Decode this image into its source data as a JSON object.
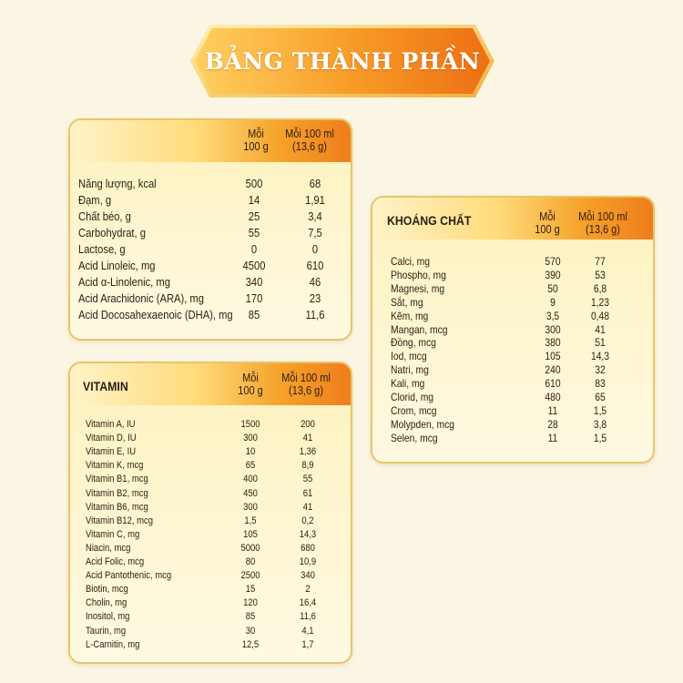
{
  "page_title": "BẢNG THÀNH PHẦN",
  "colors": {
    "orange": "#f08a1f",
    "gold": "#ffd56a",
    "cream": "#fdf6d2",
    "border": "#e8c46a"
  },
  "nutrition": {
    "col1": [
      "Mỗi",
      "100 g"
    ],
    "col2": [
      "Mỗi 100 ml",
      "(13,6 g)"
    ],
    "rows": [
      {
        "label": "Năng lượng, kcal",
        "v1": "500",
        "v2": "68"
      },
      {
        "label": "Đạm, g",
        "v1": "14",
        "v2": "1,91"
      },
      {
        "label": "Chất béo, g",
        "v1": "25",
        "v2": "3,4"
      },
      {
        "label": "Carbohydrat, g",
        "v1": "55",
        "v2": "7,5"
      },
      {
        "label": "Lactose, g",
        "v1": "0",
        "v2": "0"
      },
      {
        "label": "Acid Linoleic, mg",
        "v1": "4500",
        "v2": "610"
      },
      {
        "label": "Acid α-Linolenic, mg",
        "v1": "340",
        "v2": "46"
      },
      {
        "label": "Acid Arachidonic (ARA), mg",
        "v1": "170",
        "v2": "23"
      },
      {
        "label": "Acid Docosahexaenoic (DHA), mg",
        "v1": "85",
        "v2": "11,6"
      }
    ]
  },
  "vitamin": {
    "title": "VITAMIN",
    "col1": [
      "Mỗi",
      "100 g"
    ],
    "col2": [
      "Mỗi 100 ml",
      "(13,6 g)"
    ],
    "rows": [
      {
        "label": "Vitamin A, IU",
        "v1": "1500",
        "v2": "200"
      },
      {
        "label": "Vitamin D, IU",
        "v1": "300",
        "v2": "41"
      },
      {
        "label": "Vitamin E, IU",
        "v1": "10",
        "v2": "1,36"
      },
      {
        "label": "Vitamin K, mcg",
        "v1": "65",
        "v2": "8,9"
      },
      {
        "label": "Vitamin B1, mcg",
        "v1": "400",
        "v2": "55"
      },
      {
        "label": "Vitamin B2, mcg",
        "v1": "450",
        "v2": "61"
      },
      {
        "label": "Vitamin B6, mcg",
        "v1": "300",
        "v2": "41"
      },
      {
        "label": "Vitamin B12, mcg",
        "v1": "1,5",
        "v2": "0,2"
      },
      {
        "label": "Vitamin C, mg",
        "v1": "105",
        "v2": "14,3"
      },
      {
        "label": "Niacin, mcg",
        "v1": "5000",
        "v2": "680"
      },
      {
        "label": "Acid Folic, mcg",
        "v1": "80",
        "v2": "10,9"
      },
      {
        "label": "Acid Pantothenic, mcg",
        "v1": "2500",
        "v2": "340"
      },
      {
        "label": "Biotin, mcg",
        "v1": "15",
        "v2": "2"
      },
      {
        "label": "Cholin, mg",
        "v1": "120",
        "v2": "16,4"
      },
      {
        "label": "Inositol, mg",
        "v1": "85",
        "v2": "11,6"
      },
      {
        "label": "Taurin, mg",
        "v1": "30",
        "v2": "4,1"
      },
      {
        "label": "L-Carnitin, mg",
        "v1": "12,5",
        "v2": "1,7"
      }
    ]
  },
  "mineral": {
    "title": "KHOÁNG CHẤT",
    "col1": [
      "Mỗi",
      "100 g"
    ],
    "col2": [
      "Mỗi 100 ml",
      "(13,6 g)"
    ],
    "rows": [
      {
        "label": "Calci, mg",
        "v1": "570",
        "v2": "77"
      },
      {
        "label": "Phospho, mg",
        "v1": "390",
        "v2": "53"
      },
      {
        "label": "Magnesi, mg",
        "v1": "50",
        "v2": "6,8"
      },
      {
        "label": "Sắt, mg",
        "v1": "9",
        "v2": "1,23"
      },
      {
        "label": "Kẽm, mg",
        "v1": "3,5",
        "v2": "0,48"
      },
      {
        "label": "Mangan, mcg",
        "v1": "300",
        "v2": "41"
      },
      {
        "label": "Đồng, mcg",
        "v1": "380",
        "v2": "51"
      },
      {
        "label": "Iod, mcg",
        "v1": "105",
        "v2": "14,3"
      },
      {
        "label": "Natri, mg",
        "v1": "240",
        "v2": "32"
      },
      {
        "label": "Kali, mg",
        "v1": "610",
        "v2": "83"
      },
      {
        "label": "Clorid, mg",
        "v1": "480",
        "v2": "65"
      },
      {
        "label": "Crom, mcg",
        "v1": "11",
        "v2": "1,5"
      },
      {
        "label": "Molypden, mcg",
        "v1": "28",
        "v2": "3,8"
      },
      {
        "label": "Selen, mcg",
        "v1": "11",
        "v2": "1,5"
      }
    ]
  }
}
